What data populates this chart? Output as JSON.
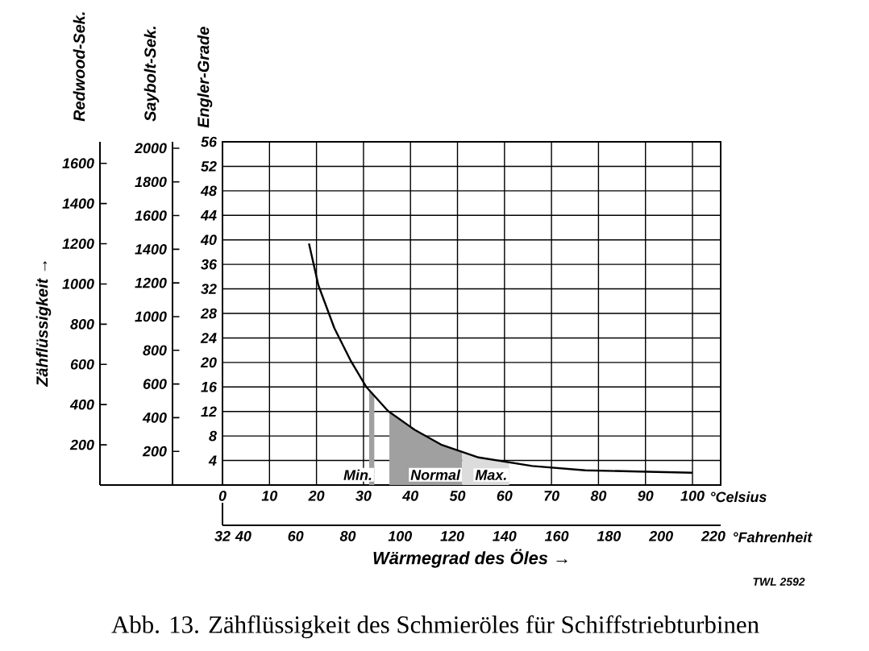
{
  "chart_data": {
    "type": "line",
    "title": "Abb. 13. Zähflüssigkeit des Schmieröles für Schiffstriebturbinen",
    "xlabel": "Wärmegrad des Öles →",
    "ylabel": "Engler-Grade",
    "y2label": "Saybolt-Sek.",
    "y3label": "Redwood-Sek.",
    "x": [
      18.4,
      20.4,
      23.8,
      27.2,
      30.6,
      35.2,
      40.9,
      46.5,
      54.5,
      65.9,
      77.2,
      88.6,
      100
    ],
    "series": [
      {
        "color": "#000000",
        "values": [
          39.4,
          32.6,
          25.6,
          20.4,
          16.0,
          12.1,
          9.0,
          6.6,
          4.5,
          3.1,
          2.4,
          2.2,
          2.0
        ]
      }
    ],
    "xlim": [
      0,
      106
    ],
    "xticks": [
      0,
      10,
      20,
      30,
      40,
      50,
      60,
      70,
      80,
      90,
      100
    ],
    "ylim": [
      0,
      56
    ],
    "yticks": [
      4,
      8,
      12,
      16,
      20,
      24,
      28,
      32,
      36,
      40,
      44,
      48,
      52,
      56
    ],
    "y2lim": [
      0,
      2038
    ],
    "y2ticks": [
      200,
      400,
      600,
      800,
      1000,
      1200,
      1400,
      1600,
      1800,
      2000
    ],
    "y3lim": [
      0,
      1707
    ],
    "y3ticks": [
      200,
      400,
      600,
      800,
      1000,
      1200,
      1400,
      1600
    ],
    "x2lim": [
      32,
      222.8
    ],
    "x2ticks": [
      32,
      40,
      60,
      80,
      100,
      120,
      140,
      160,
      180,
      200,
      220
    ],
    "bands": [
      {
        "axis": "x",
        "from": 31.2,
        "to": 32.3,
        "label": "Min.",
        "color": "#a0a0a0"
      },
      {
        "axis": "x",
        "from": 35.5,
        "to": 51,
        "label": "Normal",
        "color": "#a0a0a0"
      },
      {
        "axis": "x",
        "from": 51,
        "to": 61,
        "label": "Max.",
        "color": "#dcdcdc"
      }
    ],
    "annotations": [
      "Zähflüssigkeit →",
      "TWL 2592",
      "°Celsius",
      "°Fahrenheit"
    ],
    "grid": true
  }
}
